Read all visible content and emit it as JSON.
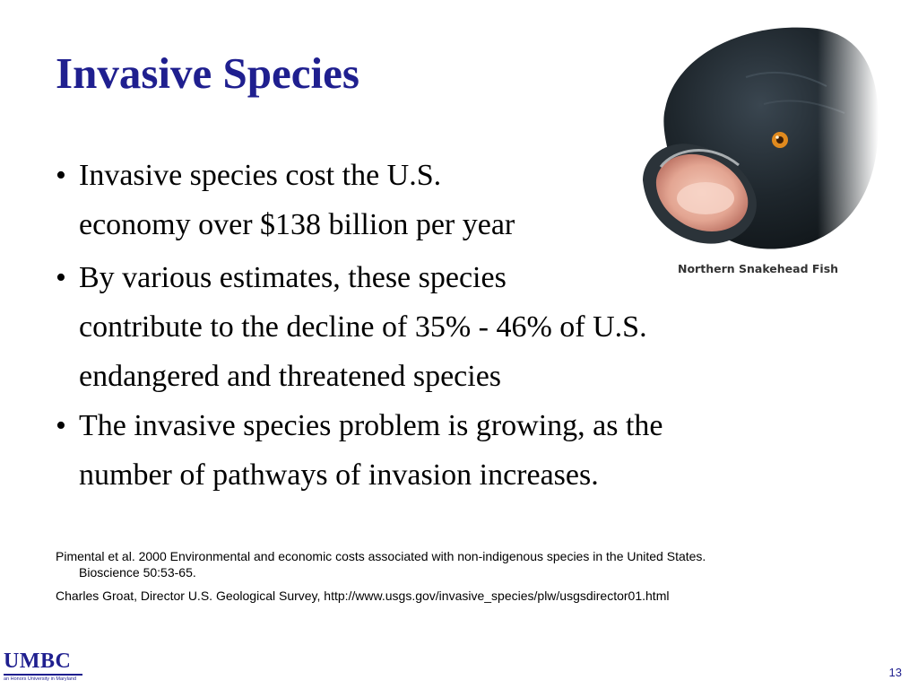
{
  "slide": {
    "title": "Invasive Species",
    "bullets": [
      {
        "lines": [
          "Invasive species cost the U.S.",
          "economy over $138 billion per year"
        ]
      },
      {
        "lines": [
          "By various estimates, these species",
          "contribute to the decline of 35% - 46% of U.S.",
          "endangered and threatened species"
        ]
      },
      {
        "lines": [
          "The invasive species problem is growing, as the",
          "number of pathways of invasion increases."
        ]
      }
    ],
    "bullet_symbol": "•",
    "references": [
      {
        "lines": [
          "Pimental et al. 2000 Environmental and economic costs associated with non-indigenous species in the United States.",
          "Bioscience 50:53-65."
        ]
      },
      {
        "lines": [
          "Charles Groat, Director U.S. Geological Survey, http://www.usgs.gov/invasive_species/plw/usgsdirector01.html"
        ]
      }
    ],
    "image_caption": "Northern Snakehead Fish",
    "logo": {
      "text": "UMBC",
      "tagline": "an Honors University in Maryland"
    },
    "page_number": "13"
  },
  "colors": {
    "title": "#1f1f8f",
    "body_text": "#000000",
    "logo": "#1f1f8f"
  }
}
